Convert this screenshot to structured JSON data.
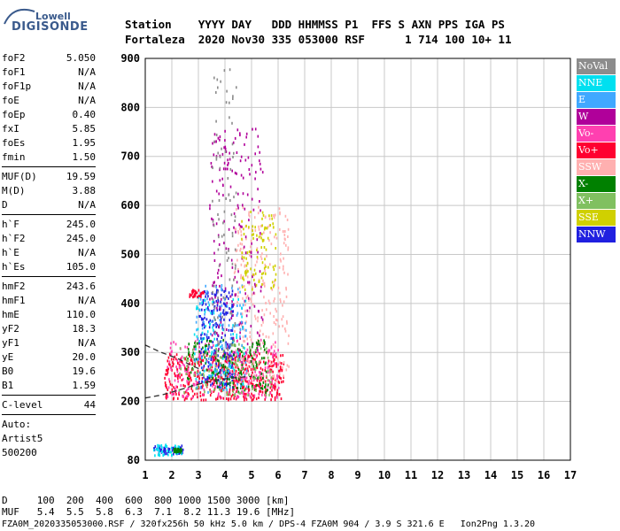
{
  "logo": {
    "small": "Lowell",
    "big": "DIGISONDE"
  },
  "header": {
    "line1": "Station    YYYY DAY   DDD HHMMSS P1  FFS S AXN PPS IGA PS",
    "line2": "Fortaleza  2020 Nov30 335 053000 RSF      1 714 100 10+ 11"
  },
  "params": [
    [
      {
        "label": "foF2",
        "value": "5.050"
      },
      {
        "label": "foF1",
        "value": "N/A"
      },
      {
        "label": "foF1p",
        "value": "N/A"
      },
      {
        "label": "foE",
        "value": "N/A"
      },
      {
        "label": "foEp",
        "value": "0.40"
      },
      {
        "label": "fxI",
        "value": "5.85"
      },
      {
        "label": "foEs",
        "value": "1.95"
      },
      {
        "label": "fmin",
        "value": "1.50"
      }
    ],
    [
      {
        "label": "MUF(D)",
        "value": "19.59"
      },
      {
        "label": "M(D)",
        "value": "3.88"
      },
      {
        "label": "D",
        "value": "N/A"
      }
    ],
    [
      {
        "label": "h`F",
        "value": "245.0"
      },
      {
        "label": "h`F2",
        "value": "245.0"
      },
      {
        "label": "h`E",
        "value": "N/A"
      },
      {
        "label": "h`Es",
        "value": "105.0"
      }
    ],
    [
      {
        "label": "hmF2",
        "value": "243.6"
      },
      {
        "label": "hmF1",
        "value": "N/A"
      },
      {
        "label": "hmE",
        "value": "110.0"
      },
      {
        "label": "yF2",
        "value": "18.3"
      },
      {
        "label": "yF1",
        "value": "N/A"
      },
      {
        "label": "yE",
        "value": "20.0"
      },
      {
        "label": "B0",
        "value": "19.6"
      },
      {
        "label": "B1",
        "value": "1.59"
      }
    ],
    [
      {
        "label": "C-level",
        "value": "44"
      }
    ]
  ],
  "auto": {
    "line1": "Auto:",
    "line2": "Artist5",
    "line3": "500200"
  },
  "legend": [
    {
      "label": "NoVal",
      "color": "#8c8c8c"
    },
    {
      "label": "NNE",
      "color": "#00e0f0"
    },
    {
      "label": "E",
      "color": "#40a8ff"
    },
    {
      "label": "W",
      "color": "#b0009a"
    },
    {
      "label": "Vo-",
      "color": "#ff40b0"
    },
    {
      "label": "Vo+",
      "color": "#ff0030"
    },
    {
      "label": "SSW",
      "color": "#ffb0b0"
    },
    {
      "label": "X-",
      "color": "#008000"
    },
    {
      "label": "X+",
      "color": "#80c060"
    },
    {
      "label": "SSE",
      "color": "#d0d000"
    },
    {
      "label": "NNW",
      "color": "#2020e0"
    }
  ],
  "bottom": {
    "d_line": "D     100  200  400  600  800 1000 1500 3000 [km]",
    "muf_line": "MUF   5.4  5.5  5.8  6.3  7.1  8.2 11.3 19.6 [MHz]",
    "footer": "FZA0M_2020335053000.RSF / 320fx256h 50 kHz 5.0 km / DPS-4 FZA0M 904 / 3.9 S 321.6 E   Ion2Png 1.3.20"
  },
  "chart_data": {
    "type": "scatter",
    "xlim": [
      1,
      17
    ],
    "ylim": [
      80,
      900
    ],
    "xticks": [
      "1",
      "2",
      "3",
      "4",
      "5",
      "6",
      "7",
      "8",
      "9",
      "10",
      "11",
      "12",
      "13",
      "14",
      "15",
      "16",
      "17"
    ],
    "yticks": [
      "80",
      "200",
      "300",
      "400",
      "500",
      "600",
      "700",
      "800",
      "900"
    ],
    "grid": true,
    "clusters": [
      {
        "color_key": "Vo+",
        "x": [
          1.7,
          6.2
        ],
        "y": [
          205,
          300
        ],
        "n": 500
      },
      {
        "color_key": "Vo-",
        "x": [
          1.8,
          6.0
        ],
        "y": [
          210,
          330
        ],
        "n": 250
      },
      {
        "color_key": "SSW",
        "x": [
          4.3,
          6.4
        ],
        "y": [
          240,
          600
        ],
        "n": 260
      },
      {
        "color_key": "NNW",
        "x": [
          3.0,
          4.3
        ],
        "y": [
          230,
          430
        ],
        "n": 220
      },
      {
        "color_key": "X-",
        "x": [
          2.5,
          5.6
        ],
        "y": [
          220,
          330
        ],
        "n": 160
      },
      {
        "color_key": "X+",
        "x": [
          2.2,
          5.8
        ],
        "y": [
          215,
          320
        ],
        "n": 120
      },
      {
        "color_key": "W",
        "x": [
          3.4,
          5.4
        ],
        "y": [
          280,
          760
        ],
        "n": 210
      },
      {
        "color_key": "E",
        "x": [
          2.8,
          4.8
        ],
        "y": [
          220,
          440
        ],
        "n": 110
      },
      {
        "color_key": "NNE",
        "x": [
          2.8,
          4.8
        ],
        "y": [
          230,
          420
        ],
        "n": 80
      },
      {
        "color_key": "SSE",
        "x": [
          4.6,
          5.9
        ],
        "y": [
          430,
          590
        ],
        "n": 90
      },
      {
        "color_key": "NoVal",
        "x": [
          3.5,
          4.4
        ],
        "y": [
          300,
          880
        ],
        "n": 90
      },
      {
        "color_key": "NNW",
        "x": [
          1.3,
          2.4
        ],
        "y": [
          95,
          112
        ],
        "n": 60
      },
      {
        "color_key": "NNE",
        "x": [
          1.3,
          2.4
        ],
        "y": [
          92,
          115
        ],
        "n": 40
      },
      {
        "color_key": "X-",
        "x": [
          2.05,
          2.35
        ],
        "y": [
          98,
          106
        ],
        "n": 30
      },
      {
        "color_key": "Vo+",
        "x": [
          2.6,
          3.2
        ],
        "y": [
          415,
          430
        ],
        "n": 30
      }
    ],
    "traces": [
      {
        "name": "F2 dashed",
        "x": [
          1.0,
          1.6,
          2.2,
          2.8,
          3.2,
          3.6,
          4.0,
          4.5,
          5.0
        ],
        "y": [
          207,
          213,
          222,
          232,
          238,
          242,
          246,
          249,
          251
        ],
        "style": "dashed"
      },
      {
        "name": "F2 upper",
        "x": [
          1.0,
          1.6,
          2.2,
          2.8,
          3.2
        ],
        "y": [
          315,
          300,
          288,
          272,
          262
        ],
        "style": "dashed"
      }
    ]
  }
}
